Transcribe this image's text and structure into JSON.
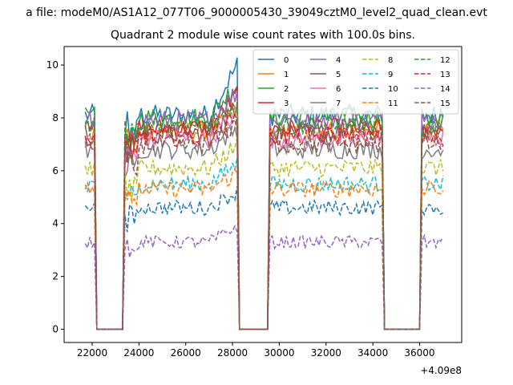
{
  "chart_data": {
    "type": "line",
    "suptitle": "a file: modeM0/AS1A12_077T06_9000005430_39049cztM0_level2_quad_clean.evt",
    "title": "Quadrant 2 module wise count rates with 100.0s bins.",
    "xlabel": "",
    "ylabel": "",
    "x_offset_label": "+4.09e8",
    "xlim": [
      20800,
      37800
    ],
    "ylim": [
      -0.5,
      10.7
    ],
    "xticks": [
      22000,
      24000,
      26000,
      28000,
      30000,
      32000,
      34000,
      36000
    ],
    "yticks": [
      0,
      2,
      4,
      6,
      8,
      10
    ],
    "grid": false,
    "legend_position": "top-right",
    "legend_columns": 4,
    "segments": [
      {
        "x_start": 21700,
        "x_end": 22100
      },
      {
        "x_start": 23400,
        "x_end": 28200
      },
      {
        "x_start": 29600,
        "x_end": 34400
      },
      {
        "x_start": 36100,
        "x_end": 37000
      }
    ],
    "gaps": [
      {
        "x_start": 22100,
        "x_end": 23300
      },
      {
        "x_start": 28300,
        "x_end": 29500
      },
      {
        "x_start": 34500,
        "x_end": 35900
      }
    ],
    "series": [
      {
        "name": "0",
        "style": "solid",
        "color": "#1f77b4",
        "level": 8.1,
        "peak": 10.0
      },
      {
        "name": "1",
        "style": "solid",
        "color": "#ff7f0e",
        "level": 7.5,
        "peak": 8.3
      },
      {
        "name": "2",
        "style": "solid",
        "color": "#2ca02c",
        "level": 8.0,
        "peak": 9.3
      },
      {
        "name": "3",
        "style": "solid",
        "color": "#d62728",
        "level": 7.6,
        "peak": 8.9
      },
      {
        "name": "4",
        "style": "solid",
        "color": "#9467bd",
        "level": 7.9,
        "peak": 9.0
      },
      {
        "name": "5",
        "style": "solid",
        "color": "#8c564b",
        "level": 7.4,
        "peak": 8.4
      },
      {
        "name": "6",
        "style": "solid",
        "color": "#e377c2",
        "level": 7.2,
        "peak": 8.2
      },
      {
        "name": "7",
        "style": "solid",
        "color": "#7f7f7f",
        "level": 6.8,
        "peak": 7.6
      },
      {
        "name": "8",
        "style": "dashed",
        "color": "#bcbd22",
        "level": 6.1,
        "peak": 7.0
      },
      {
        "name": "9",
        "style": "dashed",
        "color": "#17becf",
        "level": 5.5,
        "peak": 6.3
      },
      {
        "name": "10",
        "style": "dashed",
        "color": "#1f77b4",
        "level": 4.6,
        "peak": 5.2
      },
      {
        "name": "11",
        "style": "dashed",
        "color": "#ff7f0e",
        "level": 5.3,
        "peak": 5.9
      },
      {
        "name": "12",
        "style": "dashed",
        "color": "#2ca02c",
        "level": 7.7,
        "peak": 8.5
      },
      {
        "name": "13",
        "style": "dashed",
        "color": "#d62728",
        "level": 7.3,
        "peak": 8.0
      },
      {
        "name": "14",
        "style": "dashed",
        "color": "#9467bd",
        "level": 3.3,
        "peak": 3.9
      },
      {
        "name": "15",
        "style": "dashed",
        "color": "#8c564b",
        "level": 7.0,
        "peak": 7.8
      }
    ]
  }
}
